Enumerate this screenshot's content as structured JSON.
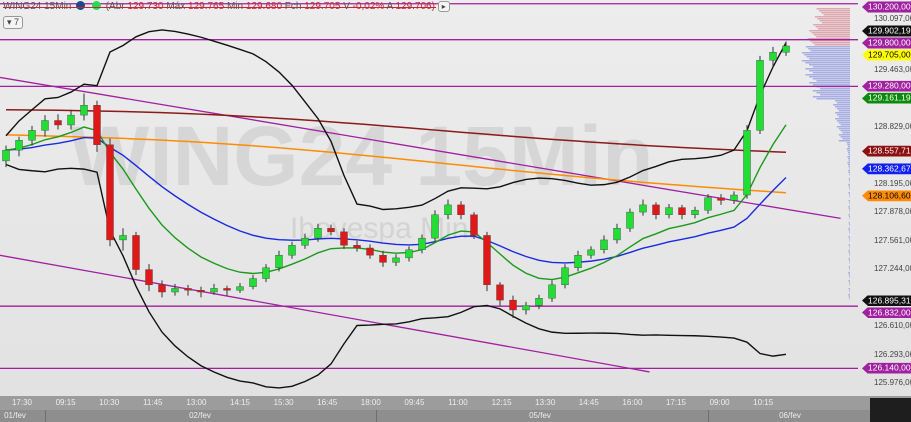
{
  "header": {
    "symbol": "WING24 15Min",
    "quote_open_label": "(Abr",
    "open": "129.730",
    "high_label": "Máx",
    "high": "129.765",
    "low_label": "Min",
    "low": "129.680",
    "close_label": "Fch",
    "close": "129.705",
    "var_label": "V",
    "var": "-0,02%",
    "last_label": "A",
    "last": "129.706)",
    "collapse_count": "7"
  },
  "watermark": {
    "main": "WING24 15Min",
    "sub": "Ibovespa Mini"
  },
  "colors": {
    "bull": "#22dd33",
    "bear": "#e01818",
    "bands": "#111111",
    "ema_fast": "#1a9a1a",
    "ma_mid": "#1a2ae0",
    "ma_orange": "#ff8c00",
    "ma_darkred": "#8b1a1a",
    "levels": "#a020a0"
  },
  "chart_data": {
    "type": "candlestick",
    "title": "WING24 15Min",
    "ylim": [
      125.84,
      130.24
    ],
    "candles": [
      [
        128.45,
        128.62,
        128.38,
        128.57
      ],
      [
        128.57,
        128.72,
        128.5,
        128.68
      ],
      [
        128.68,
        128.84,
        128.62,
        128.79
      ],
      [
        128.79,
        128.96,
        128.72,
        128.9
      ],
      [
        128.9,
        128.97,
        128.8,
        128.85
      ],
      [
        128.85,
        129.02,
        128.8,
        128.96
      ],
      [
        128.96,
        129.2,
        128.9,
        129.07
      ],
      [
        129.07,
        129.12,
        128.55,
        128.63
      ],
      [
        128.63,
        128.7,
        127.5,
        127.57
      ],
      [
        127.57,
        127.7,
        127.45,
        127.62
      ],
      [
        127.62,
        127.66,
        127.18,
        127.24
      ],
      [
        127.24,
        127.3,
        127.0,
        127.07
      ],
      [
        127.07,
        127.12,
        126.93,
        126.99
      ],
      [
        126.99,
        127.08,
        126.95,
        127.03
      ],
      [
        127.03,
        127.07,
        126.95,
        127.01
      ],
      [
        127.01,
        127.05,
        126.93,
        126.99
      ],
      [
        126.99,
        127.08,
        126.96,
        127.03
      ],
      [
        127.03,
        127.06,
        126.95,
        127.01
      ],
      [
        127.01,
        127.09,
        126.98,
        127.05
      ],
      [
        127.05,
        127.18,
        127.02,
        127.14
      ],
      [
        127.14,
        127.3,
        127.1,
        127.26
      ],
      [
        127.26,
        127.45,
        127.22,
        127.4
      ],
      [
        127.4,
        127.55,
        127.36,
        127.51
      ],
      [
        127.51,
        127.64,
        127.47,
        127.59
      ],
      [
        127.59,
        127.75,
        127.55,
        127.7
      ],
      [
        127.7,
        127.74,
        127.62,
        127.66
      ],
      [
        127.66,
        127.7,
        127.47,
        127.51
      ],
      [
        127.51,
        127.56,
        127.44,
        127.48
      ],
      [
        127.48,
        127.52,
        127.36,
        127.4
      ],
      [
        127.4,
        127.45,
        127.27,
        127.32
      ],
      [
        127.32,
        127.41,
        127.28,
        127.37
      ],
      [
        127.37,
        127.5,
        127.33,
        127.46
      ],
      [
        127.46,
        127.63,
        127.42,
        127.59
      ],
      [
        127.59,
        127.9,
        127.55,
        127.85
      ],
      [
        127.85,
        128.02,
        127.8,
        127.96
      ],
      [
        127.96,
        128.0,
        127.8,
        127.85
      ],
      [
        127.85,
        127.88,
        127.58,
        127.62
      ],
      [
        127.62,
        127.66,
        127.0,
        127.07
      ],
      [
        127.07,
        127.1,
        126.84,
        126.9
      ],
      [
        126.9,
        126.95,
        126.7,
        126.79
      ],
      [
        126.79,
        126.88,
        126.74,
        126.84
      ],
      [
        126.84,
        126.96,
        126.8,
        126.92
      ],
      [
        126.92,
        127.12,
        126.88,
        127.07
      ],
      [
        127.07,
        127.3,
        127.03,
        127.26
      ],
      [
        127.26,
        127.45,
        127.22,
        127.4
      ],
      [
        127.4,
        127.5,
        127.36,
        127.46
      ],
      [
        127.46,
        127.62,
        127.42,
        127.57
      ],
      [
        127.57,
        127.75,
        127.53,
        127.7
      ],
      [
        127.7,
        127.92,
        127.66,
        127.88
      ],
      [
        127.88,
        128.02,
        127.84,
        127.96
      ],
      [
        127.96,
        127.99,
        127.8,
        127.85
      ],
      [
        127.85,
        127.97,
        127.81,
        127.93
      ],
      [
        127.93,
        127.96,
        127.8,
        127.85
      ],
      [
        127.85,
        127.94,
        127.81,
        127.9
      ],
      [
        127.9,
        128.08,
        127.86,
        128.04
      ],
      [
        128.04,
        128.08,
        127.96,
        128.01
      ],
      [
        128.01,
        128.11,
        127.97,
        128.07
      ],
      [
        128.07,
        128.85,
        128.03,
        128.79
      ],
      [
        128.79,
        129.62,
        128.75,
        129.57
      ],
      [
        129.57,
        129.72,
        129.5,
        129.66
      ],
      [
        129.66,
        129.78,
        129.62,
        129.73
      ]
    ],
    "moving_averages": [
      {
        "color": "#ff8c00",
        "start": 128.74,
        "end": 128.106
      },
      {
        "color": "#8b1a1a",
        "start": 129.02,
        "end": 128.557
      }
    ],
    "trendlines": [
      {
        "from": [
          -0.5,
          129.38
        ],
        "to": [
          64.2,
          127.81
        ]
      },
      {
        "from": [
          -0.5,
          127.4
        ],
        "to": [
          49.5,
          126.1
        ]
      }
    ],
    "levels": [
      130.2,
      129.8,
      129.28,
      126.832,
      126.14
    ],
    "price_ticks": [
      "130.097,00",
      "129.463,00",
      "128.829,00",
      "128.195,00",
      "127.878,00",
      "127.561,00",
      "127.244,00",
      "126.610,00",
      "126.293,00",
      "125.976,00"
    ],
    "price_tags": [
      {
        "text": "130.200,00",
        "bg": "#a020a0",
        "fg": "#ffffff",
        "price": 130.2
      },
      {
        "text": "129.902,19",
        "bg": "#111111",
        "fg": "#ffffff",
        "price": 129.902
      },
      {
        "text": "129.800,00",
        "bg": "#a020a0",
        "fg": "#ffffff",
        "price": 129.8
      },
      {
        "text": "129.705,00",
        "bg": "#ffff00",
        "fg": "#000000",
        "price": 129.705
      },
      {
        "text": "129.280,00",
        "bg": "#a020a0",
        "fg": "#ffffff",
        "price": 129.28
      },
      {
        "text": "129.161,19",
        "bg": "#0a8a0a",
        "fg": "#ffffff",
        "price": 129.161
      },
      {
        "text": "128.557,71",
        "bg": "#8b1010",
        "fg": "#ffffff",
        "price": 128.557
      },
      {
        "text": "128.362,67",
        "bg": "#1020f0",
        "fg": "#ffffff",
        "price": 128.362
      },
      {
        "text": "128.106,60",
        "bg": "#ff8c00",
        "fg": "#000000",
        "price": 128.106
      },
      {
        "text": "126.832,00",
        "bg": "#a020a0",
        "fg": "#ffffff",
        "price": 126.832
      },
      {
        "text": "126.895,31",
        "bg": "#111111",
        "fg": "#ffffff",
        "price": 126.895
      },
      {
        "text": "126.140,00",
        "bg": "#a020a0",
        "fg": "#ffffff",
        "price": 126.14
      }
    ],
    "time_labels": [
      "17:30",
      "09:15",
      "10:30",
      "11:45",
      "13:00",
      "14:15",
      "15:30",
      "16:45",
      "18:00",
      "09:45",
      "11:00",
      "12:15",
      "13:30",
      "14:45",
      "16:00",
      "17:15",
      "09:00",
      "10:15"
    ],
    "day_labels": [
      "01/fev",
      "02/fev",
      "05/fev",
      "06/fev"
    ]
  }
}
